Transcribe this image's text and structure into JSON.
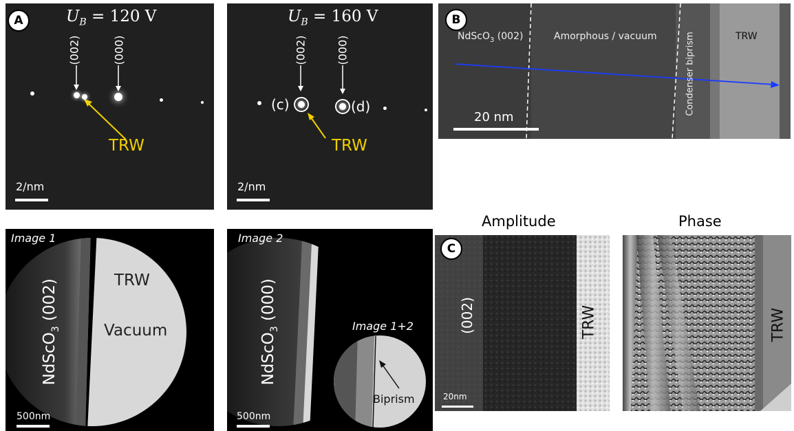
{
  "panel_a": {
    "badge": "A",
    "left": {
      "title": "U_B = 120 V",
      "title_var": "U",
      "title_sub": "B",
      "title_rest": " = 120 V",
      "label_002": "(002)",
      "label_000": "(000)",
      "trw": "TRW",
      "scale": "2/nm"
    },
    "right": {
      "title_var": "U",
      "title_sub": "B",
      "title_rest": " = 160 V",
      "label_002": "(002)",
      "label_000": "(000)",
      "spot_c": "(c)",
      "spot_d": "(d)",
      "trw": "TRW",
      "scale": "2/nm"
    },
    "image1": {
      "title": "Image 1",
      "crystal": "NdScO3 (002)",
      "crystal_pre": "NdScO",
      "crystal_sub": "3",
      "crystal_post": " (002)",
      "trw": "TRW",
      "vacuum": "Vacuum",
      "scale": "500nm"
    },
    "image2": {
      "title": "Image 2",
      "crystal_pre": "NdScO",
      "crystal_sub": "3",
      "crystal_post": " (000)",
      "inset_title": "Image 1+2",
      "biprism": "Biprism",
      "scale": "500nm"
    }
  },
  "panel_b": {
    "badge": "B",
    "region1_pre": "NdScO",
    "region1_sub": "3",
    "region1_post": " (002)",
    "region2": "Amorphous / vacuum",
    "region3": "Condenser biprism",
    "region4": "TRW",
    "scale": "20 nm",
    "arrow_color": "#1a3cff"
  },
  "panel_c": {
    "badge": "C",
    "amplitude_title": "Amplitude",
    "phase_title": "Phase",
    "amp_label_002": "(002)",
    "amp_trw": "TRW",
    "phase_trw": "TRW",
    "scale": "20nm"
  },
  "colors": {
    "trw_yellow": "#f0d000",
    "panel_dark": "#1e1e1e"
  }
}
